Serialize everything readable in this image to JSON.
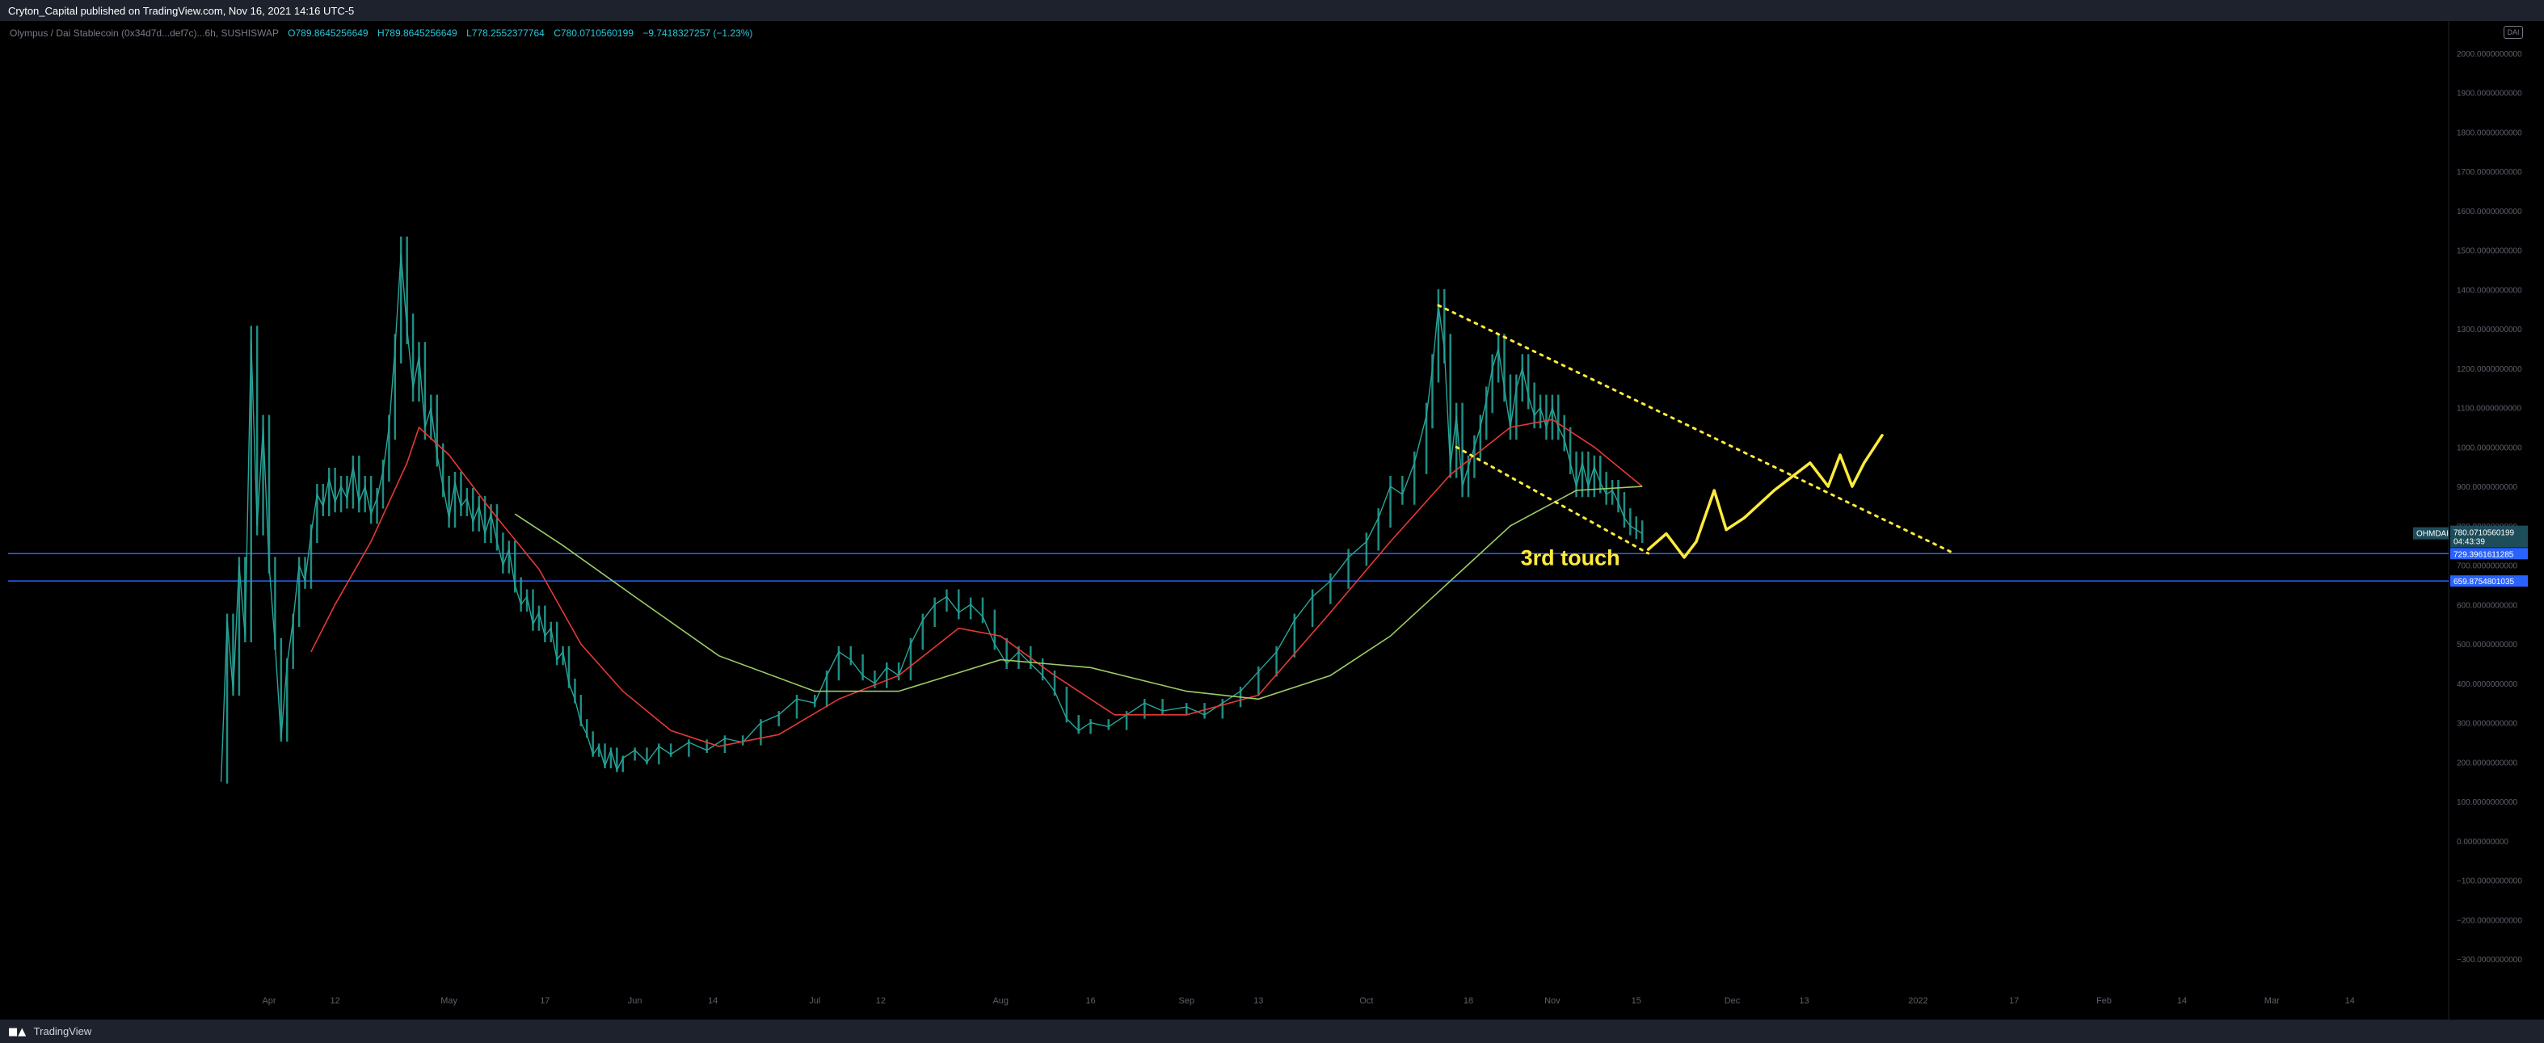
{
  "header": {
    "publisher_text": "Cryton_Capital published on TradingView.com, Nov 16, 2021 14:16 UTC-5"
  },
  "legend": {
    "symbol": "Olympus / Dai Stablecoin (0x34d7d...def7c)...6h, SUSHISWAP",
    "open": "O789.8645256649",
    "high": "H789.8645256649",
    "low": "L778.2552377764",
    "close": "C780.0710560199",
    "change": "−9.7418327257 (−1.23%)"
  },
  "badge_text": "DAI",
  "footer": {
    "logo_text": "TradingView"
  },
  "price_tags": {
    "symbol_tag": "OHMDAI",
    "last_price": "780.0710560199",
    "countdown": "04:43:39",
    "level_1": "729.3961611285",
    "level_2": "659.8754801035"
  },
  "annotation": {
    "text": "3rd touch"
  },
  "colors": {
    "candles": "#26a69a",
    "ma_fast": "#e53935",
    "ma_slow": "#9ccc65",
    "trendline": "#ffeb3b",
    "hline": "#2962ff",
    "sketch": "#ffeb3b"
  },
  "chart_data": {
    "type": "line",
    "title": "",
    "xlabel": "",
    "ylabel": "",
    "ylim": [
      -340,
      2020
    ],
    "y_ticks": [
      {
        "v": 2000,
        "label": "2000.0000000000"
      },
      {
        "v": 1900,
        "label": "1900.0000000000"
      },
      {
        "v": 1800,
        "label": "1800.0000000000"
      },
      {
        "v": 1700,
        "label": "1700.0000000000"
      },
      {
        "v": 1600,
        "label": "1600.0000000000"
      },
      {
        "v": 1500,
        "label": "1500.0000000000"
      },
      {
        "v": 1400,
        "label": "1400.0000000000"
      },
      {
        "v": 1300,
        "label": "1300.0000000000"
      },
      {
        "v": 1200,
        "label": "1200.0000000000"
      },
      {
        "v": 1100,
        "label": "1100.0000000000"
      },
      {
        "v": 1000,
        "label": "1000.0000000000"
      },
      {
        "v": 900,
        "label": "900.0000000000"
      },
      {
        "v": 800,
        "label": "800.0000000000"
      },
      {
        "v": 700,
        "label": "700.0000000000"
      },
      {
        "v": 600,
        "label": "600.0000000000"
      },
      {
        "v": 500,
        "label": "500.0000000000"
      },
      {
        "v": 400,
        "label": "400.0000000000"
      },
      {
        "v": 300,
        "label": "300.0000000000"
      },
      {
        "v": 200,
        "label": "200.0000000000"
      },
      {
        "v": 100,
        "label": "100.0000000000"
      },
      {
        "v": 0,
        "label": "0.0000000000"
      },
      {
        "v": -100,
        "label": "−100.0000000000"
      },
      {
        "v": -200,
        "label": "−200.0000000000"
      },
      {
        "v": -300,
        "label": "−300.0000000000"
      }
    ],
    "x_ticks": [
      {
        "d": "2021-04-01",
        "label": "Apr"
      },
      {
        "d": "2021-04-12",
        "label": "12"
      },
      {
        "d": "2021-05-01",
        "label": "May"
      },
      {
        "d": "2021-05-17",
        "label": "17"
      },
      {
        "d": "2021-06-01",
        "label": "Jun"
      },
      {
        "d": "2021-06-14",
        "label": "14"
      },
      {
        "d": "2021-07-01",
        "label": "Jul"
      },
      {
        "d": "2021-07-12",
        "label": "12"
      },
      {
        "d": "2021-08-01",
        "label": "Aug"
      },
      {
        "d": "2021-08-16",
        "label": "16"
      },
      {
        "d": "2021-09-01",
        "label": "Sep"
      },
      {
        "d": "2021-09-13",
        "label": "13"
      },
      {
        "d": "2021-10-01",
        "label": "Oct"
      },
      {
        "d": "2021-10-18",
        "label": "18"
      },
      {
        "d": "2021-11-01",
        "label": "Nov"
      },
      {
        "d": "2021-11-15",
        "label": "15"
      },
      {
        "d": "2021-12-01",
        "label": "Dec"
      },
      {
        "d": "2021-12-13",
        "label": "13"
      },
      {
        "d": "2022-01-01",
        "label": "2022"
      },
      {
        "d": "2022-01-17",
        "label": "17"
      },
      {
        "d": "2022-02-01",
        "label": "Feb"
      },
      {
        "d": "2022-02-14",
        "label": "14"
      },
      {
        "d": "2022-03-01",
        "label": "Mar"
      },
      {
        "d": "2022-03-14",
        "label": "14"
      }
    ],
    "series": [
      {
        "key": "price",
        "points": [
          [
            "2021-03-24",
            150
          ],
          [
            "2021-03-25",
            560
          ],
          [
            "2021-03-26",
            380
          ],
          [
            "2021-03-27",
            700
          ],
          [
            "2021-03-28",
            520
          ],
          [
            "2021-03-29",
            1270
          ],
          [
            "2021-03-30",
            800
          ],
          [
            "2021-03-31",
            1050
          ],
          [
            "2021-04-01",
            700
          ],
          [
            "2021-04-02",
            500
          ],
          [
            "2021-04-03",
            260
          ],
          [
            "2021-04-04",
            450
          ],
          [
            "2021-04-05",
            560
          ],
          [
            "2021-04-06",
            700
          ],
          [
            "2021-04-07",
            660
          ],
          [
            "2021-04-08",
            780
          ],
          [
            "2021-04-09",
            880
          ],
          [
            "2021-04-10",
            850
          ],
          [
            "2021-04-11",
            920
          ],
          [
            "2021-04-12",
            860
          ],
          [
            "2021-04-13",
            900
          ],
          [
            "2021-04-14",
            870
          ],
          [
            "2021-04-15",
            950
          ],
          [
            "2021-04-16",
            860
          ],
          [
            "2021-04-17",
            900
          ],
          [
            "2021-04-18",
            830
          ],
          [
            "2021-04-19",
            870
          ],
          [
            "2021-04-20",
            940
          ],
          [
            "2021-04-21",
            1050
          ],
          [
            "2021-04-22",
            1250
          ],
          [
            "2021-04-23",
            1490
          ],
          [
            "2021-04-24",
            1300
          ],
          [
            "2021-04-25",
            1150
          ],
          [
            "2021-04-26",
            1230
          ],
          [
            "2021-04-27",
            1050
          ],
          [
            "2021-04-28",
            1100
          ],
          [
            "2021-04-29",
            980
          ],
          [
            "2021-04-30",
            900
          ],
          [
            "2021-05-01",
            820
          ],
          [
            "2021-05-02",
            910
          ],
          [
            "2021-05-03",
            850
          ],
          [
            "2021-05-04",
            870
          ],
          [
            "2021-05-05",
            810
          ],
          [
            "2021-05-06",
            850
          ],
          [
            "2021-05-07",
            780
          ],
          [
            "2021-05-08",
            830
          ],
          [
            "2021-05-09",
            760
          ],
          [
            "2021-05-10",
            700
          ],
          [
            "2021-05-11",
            740
          ],
          [
            "2021-05-12",
            650
          ],
          [
            "2021-05-13",
            600
          ],
          [
            "2021-05-14",
            620
          ],
          [
            "2021-05-15",
            550
          ],
          [
            "2021-05-16",
            580
          ],
          [
            "2021-05-17",
            520
          ],
          [
            "2021-05-18",
            540
          ],
          [
            "2021-05-19",
            460
          ],
          [
            "2021-05-20",
            480
          ],
          [
            "2021-05-21",
            400
          ],
          [
            "2021-05-22",
            360
          ],
          [
            "2021-05-23",
            300
          ],
          [
            "2021-05-24",
            270
          ],
          [
            "2021-05-25",
            220
          ],
          [
            "2021-05-26",
            240
          ],
          [
            "2021-05-27",
            190
          ],
          [
            "2021-05-28",
            230
          ],
          [
            "2021-05-29",
            180
          ],
          [
            "2021-05-30",
            210
          ],
          [
            "2021-06-01",
            230
          ],
          [
            "2021-06-03",
            200
          ],
          [
            "2021-06-05",
            240
          ],
          [
            "2021-06-07",
            220
          ],
          [
            "2021-06-10",
            250
          ],
          [
            "2021-06-13",
            230
          ],
          [
            "2021-06-16",
            260
          ],
          [
            "2021-06-19",
            250
          ],
          [
            "2021-06-22",
            300
          ],
          [
            "2021-06-25",
            320
          ],
          [
            "2021-06-28",
            360
          ],
          [
            "2021-07-01",
            350
          ],
          [
            "2021-07-03",
            420
          ],
          [
            "2021-07-05",
            480
          ],
          [
            "2021-07-07",
            460
          ],
          [
            "2021-07-09",
            420
          ],
          [
            "2021-07-11",
            400
          ],
          [
            "2021-07-13",
            440
          ],
          [
            "2021-07-15",
            420
          ],
          [
            "2021-07-17",
            500
          ],
          [
            "2021-07-19",
            560
          ],
          [
            "2021-07-21",
            600
          ],
          [
            "2021-07-23",
            620
          ],
          [
            "2021-07-25",
            580
          ],
          [
            "2021-07-27",
            600
          ],
          [
            "2021-07-29",
            570
          ],
          [
            "2021-07-31",
            500
          ],
          [
            "2021-08-02",
            450
          ],
          [
            "2021-08-04",
            480
          ],
          [
            "2021-08-06",
            450
          ],
          [
            "2021-08-08",
            420
          ],
          [
            "2021-08-10",
            380
          ],
          [
            "2021-08-12",
            310
          ],
          [
            "2021-08-14",
            280
          ],
          [
            "2021-08-16",
            300
          ],
          [
            "2021-08-19",
            290
          ],
          [
            "2021-08-22",
            320
          ],
          [
            "2021-08-25",
            350
          ],
          [
            "2021-08-28",
            330
          ],
          [
            "2021-09-01",
            340
          ],
          [
            "2021-09-04",
            320
          ],
          [
            "2021-09-07",
            350
          ],
          [
            "2021-09-10",
            380
          ],
          [
            "2021-09-13",
            430
          ],
          [
            "2021-09-16",
            480
          ],
          [
            "2021-09-19",
            560
          ],
          [
            "2021-09-22",
            620
          ],
          [
            "2021-09-25",
            660
          ],
          [
            "2021-09-28",
            720
          ],
          [
            "2021-10-01",
            760
          ],
          [
            "2021-10-03",
            820
          ],
          [
            "2021-10-05",
            900
          ],
          [
            "2021-10-07",
            880
          ],
          [
            "2021-10-09",
            960
          ],
          [
            "2021-10-11",
            1080
          ],
          [
            "2021-10-12",
            1200
          ],
          [
            "2021-10-13",
            1360
          ],
          [
            "2021-10-14",
            1250
          ],
          [
            "2021-10-15",
            950
          ],
          [
            "2021-10-16",
            1080
          ],
          [
            "2021-10-17",
            900
          ],
          [
            "2021-10-18",
            950
          ],
          [
            "2021-10-19",
            1000
          ],
          [
            "2021-10-20",
            1050
          ],
          [
            "2021-10-21",
            1120
          ],
          [
            "2021-10-22",
            1200
          ],
          [
            "2021-10-23",
            1250
          ],
          [
            "2021-10-24",
            1150
          ],
          [
            "2021-10-25",
            1050
          ],
          [
            "2021-10-26",
            1150
          ],
          [
            "2021-10-27",
            1200
          ],
          [
            "2021-10-28",
            1130
          ],
          [
            "2021-10-29",
            1080
          ],
          [
            "2021-10-30",
            1100
          ],
          [
            "2021-10-31",
            1050
          ],
          [
            "2021-11-01",
            1100
          ],
          [
            "2021-11-02",
            1050
          ],
          [
            "2021-11-03",
            1020
          ],
          [
            "2021-11-04",
            960
          ],
          [
            "2021-11-05",
            900
          ],
          [
            "2021-11-06",
            960
          ],
          [
            "2021-11-07",
            900
          ],
          [
            "2021-11-08",
            950
          ],
          [
            "2021-11-09",
            910
          ],
          [
            "2021-11-10",
            880
          ],
          [
            "2021-11-11",
            890
          ],
          [
            "2021-11-12",
            860
          ],
          [
            "2021-11-13",
            820
          ],
          [
            "2021-11-14",
            800
          ],
          [
            "2021-11-15",
            790
          ],
          [
            "2021-11-16",
            780
          ]
        ]
      },
      {
        "key": "ma_fast",
        "points": [
          [
            "2021-04-08",
            480
          ],
          [
            "2021-04-12",
            600
          ],
          [
            "2021-04-18",
            760
          ],
          [
            "2021-04-24",
            960
          ],
          [
            "2021-04-26",
            1050
          ],
          [
            "2021-05-01",
            980
          ],
          [
            "2021-05-08",
            840
          ],
          [
            "2021-05-16",
            690
          ],
          [
            "2021-05-23",
            500
          ],
          [
            "2021-05-30",
            380
          ],
          [
            "2021-06-07",
            280
          ],
          [
            "2021-06-15",
            240
          ],
          [
            "2021-06-25",
            270
          ],
          [
            "2021-07-05",
            360
          ],
          [
            "2021-07-15",
            420
          ],
          [
            "2021-07-25",
            540
          ],
          [
            "2021-08-01",
            520
          ],
          [
            "2021-08-10",
            420
          ],
          [
            "2021-08-20",
            320
          ],
          [
            "2021-09-01",
            320
          ],
          [
            "2021-09-13",
            370
          ],
          [
            "2021-09-25",
            580
          ],
          [
            "2021-10-05",
            760
          ],
          [
            "2021-10-15",
            930
          ],
          [
            "2021-10-25",
            1050
          ],
          [
            "2021-11-01",
            1070
          ],
          [
            "2021-11-08",
            1000
          ],
          [
            "2021-11-16",
            900
          ]
        ]
      },
      {
        "key": "ma_slow",
        "points": [
          [
            "2021-05-12",
            830
          ],
          [
            "2021-05-20",
            750
          ],
          [
            "2021-06-01",
            620
          ],
          [
            "2021-06-15",
            470
          ],
          [
            "2021-07-01",
            380
          ],
          [
            "2021-07-15",
            380
          ],
          [
            "2021-08-01",
            460
          ],
          [
            "2021-08-16",
            440
          ],
          [
            "2021-09-01",
            380
          ],
          [
            "2021-09-13",
            360
          ],
          [
            "2021-09-25",
            420
          ],
          [
            "2021-10-05",
            520
          ],
          [
            "2021-10-15",
            660
          ],
          [
            "2021-10-25",
            800
          ],
          [
            "2021-11-05",
            890
          ],
          [
            "2021-11-16",
            900
          ]
        ]
      }
    ],
    "horizontal_levels": [
      729.3961611285,
      659.8754801035
    ],
    "trendlines": [
      {
        "from": [
          "2021-10-13",
          1360
        ],
        "to": [
          "2022-01-07",
          730
        ]
      },
      {
        "from": [
          "2021-10-16",
          1000
        ],
        "to": [
          "2021-11-17",
          730
        ]
      }
    ],
    "projection": [
      [
        "2021-11-17",
        740
      ],
      [
        "2021-11-20",
        780
      ],
      [
        "2021-11-23",
        720
      ],
      [
        "2021-11-25",
        760
      ],
      [
        "2021-11-28",
        890
      ],
      [
        "2021-11-30",
        790
      ],
      [
        "2021-12-03",
        820
      ],
      [
        "2021-12-08",
        890
      ],
      [
        "2021-12-14",
        960
      ],
      [
        "2021-12-17",
        900
      ],
      [
        "2021-12-19",
        980
      ],
      [
        "2021-12-21",
        900
      ],
      [
        "2021-12-23",
        960
      ],
      [
        "2021-12-26",
        1030
      ]
    ],
    "grid": false,
    "legend_position": "top-left"
  }
}
